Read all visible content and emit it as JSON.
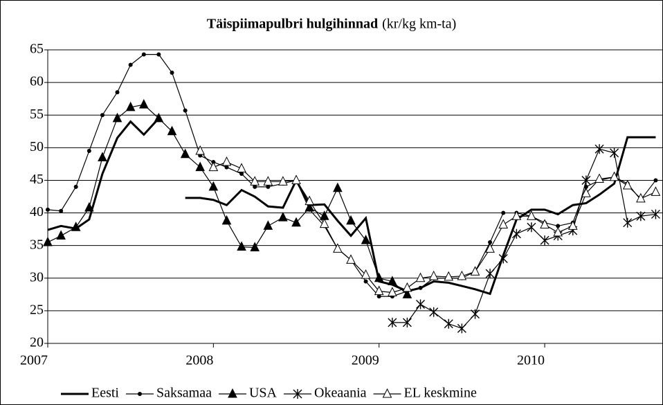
{
  "chart_data": {
    "type": "line",
    "title": "Täispiimapulbri hulgihinnad",
    "title_unit": "(kr/kg km-ta)",
    "x": [
      2007,
      2007.08,
      2007.17,
      2007.25,
      2007.33,
      2007.42,
      2007.5,
      2007.58,
      2007.67,
      2007.75,
      2007.83,
      2007.92,
      2008,
      2008.08,
      2008.17,
      2008.25,
      2008.33,
      2008.42,
      2008.5,
      2008.58,
      2008.67,
      2008.75,
      2008.83,
      2008.92,
      2009,
      2009.08,
      2009.17,
      2009.25,
      2009.33,
      2009.42,
      2009.5,
      2009.58,
      2009.67,
      2009.75,
      2009.83,
      2009.92,
      2010,
      2010.08,
      2010.17,
      2010.25,
      2010.33,
      2010.42,
      2010.5,
      2010.58,
      2010.67
    ],
    "xlim": [
      2007,
      2010.71
    ],
    "xticks": [
      2007,
      2008,
      2009,
      2010
    ],
    "ylim": [
      20,
      65
    ],
    "yticks": [
      20,
      25,
      30,
      35,
      40,
      45,
      50,
      55,
      60,
      65
    ],
    "grid": true,
    "legend": "bottom",
    "series": [
      {
        "name": "Eesti",
        "color": "#000000",
        "marker": "none",
        "width": 3,
        "values": [
          37.4,
          38,
          37.6,
          39,
          46,
          51.5,
          54,
          52,
          54.5,
          null,
          42.3,
          42.3,
          42,
          41.2,
          43.5,
          42.5,
          41,
          40.8,
          45,
          41.2,
          41.3,
          38.8,
          36.5,
          39.2,
          29.5,
          29,
          28,
          28.5,
          29.5,
          29.3,
          28.8,
          28.3,
          27.6,
          33.5,
          39,
          40.5,
          40.5,
          39.8,
          41.2,
          41.5,
          42.8,
          44.5,
          51.6,
          51.6,
          51.6
        ]
      },
      {
        "name": "Saksamaa",
        "color": "#000000",
        "marker": "dot",
        "width": 1.2,
        "values": [
          40.5,
          40.3,
          44,
          49.5,
          55,
          58.5,
          62.7,
          64.3,
          64.3,
          61.5,
          55.7,
          48.8,
          47.8,
          47,
          46,
          44,
          44,
          44.5,
          45,
          40.5,
          38,
          34.5,
          32.8,
          29.5,
          27.2,
          27.2,
          28,
          28.5,
          30,
          30,
          30,
          31,
          35.5,
          40,
          40,
          39.5,
          38.5,
          38,
          38.5,
          44,
          45,
          45.5,
          44.5,
          42,
          45
        ]
      },
      {
        "name": "USA",
        "color": "#000000",
        "marker": "filled-triangle",
        "width": 1.2,
        "values": [
          35.5,
          36.5,
          37.8,
          40.8,
          48.5,
          54.5,
          56.2,
          56.6,
          54.5,
          52.5,
          49,
          47,
          44,
          38.8,
          34.8,
          34.7,
          38,
          39.3,
          38.5,
          40.8,
          39.5,
          43.8,
          38.8,
          35.8,
          30,
          29.5,
          27.5,
          null,
          null,
          null,
          null,
          null,
          null,
          null,
          null,
          null,
          null,
          null,
          null,
          null,
          null,
          null,
          null,
          null,
          null
        ]
      },
      {
        "name": "Okeaania",
        "color": "#000000",
        "marker": "asterisk",
        "width": 1.2,
        "values": [
          null,
          null,
          null,
          null,
          null,
          null,
          null,
          null,
          null,
          null,
          null,
          null,
          null,
          null,
          null,
          null,
          null,
          null,
          null,
          null,
          null,
          null,
          null,
          null,
          null,
          23.2,
          23.2,
          26,
          24.8,
          23,
          22.3,
          24.5,
          30.7,
          33,
          36.8,
          37.8,
          35.8,
          36.5,
          37.3,
          45,
          49.8,
          49.2,
          38.5,
          39.5,
          39.8
        ]
      },
      {
        "name": "EL keskmine",
        "color": "#000000",
        "marker": "open-triangle",
        "width": 1.2,
        "values": [
          null,
          null,
          null,
          null,
          null,
          null,
          null,
          null,
          null,
          null,
          null,
          49.5,
          47,
          47.8,
          46.8,
          44.8,
          44.8,
          44.8,
          45,
          41.8,
          38.3,
          34.5,
          32.8,
          30.5,
          28,
          27.8,
          28.5,
          30,
          30.3,
          30.2,
          30.3,
          31,
          34.5,
          38.2,
          39.5,
          39.5,
          38.2,
          37,
          38,
          43,
          45.2,
          45.5,
          44.2,
          42.2,
          43.2
        ]
      }
    ]
  }
}
